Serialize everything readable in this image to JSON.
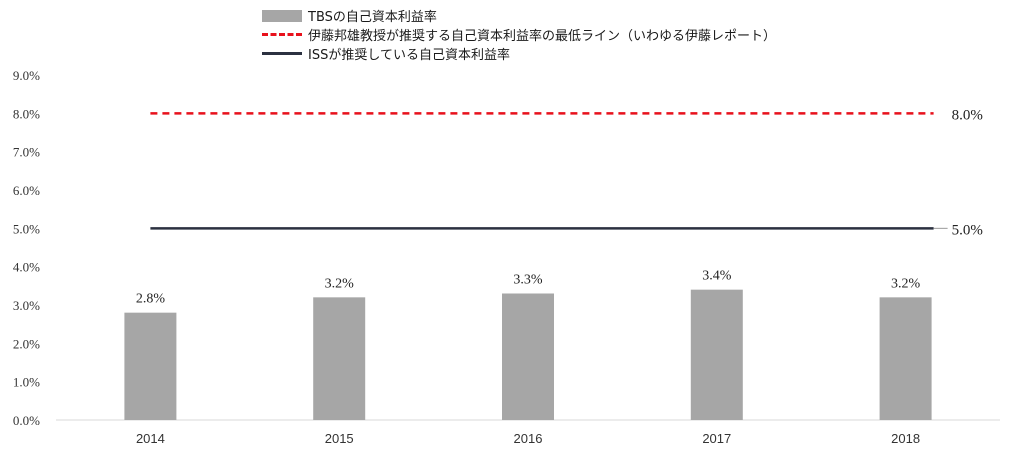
{
  "chart_data": {
    "type": "bar",
    "categories": [
      "2014",
      "2015",
      "2016",
      "2017",
      "2018"
    ],
    "series": [
      {
        "name": "TBSの自己資本利益率",
        "type": "bar",
        "values": [
          2.8,
          3.2,
          3.3,
          3.4,
          3.2
        ],
        "color": "#a6a6a6"
      },
      {
        "name": "伊藤邦雄教授が推奨する自己資本利益率の最低ライン（いわゆる伊藤レポート）",
        "type": "line",
        "style": "dashed",
        "value": 8.0,
        "color": "#e8111c"
      },
      {
        "name": "ISSが推奨している自己資本利益率",
        "type": "line",
        "style": "solid",
        "value": 5.0,
        "color": "#2b3140"
      }
    ],
    "data_labels": [
      "2.8%",
      "3.2%",
      "3.3%",
      "3.4%",
      "3.2%"
    ],
    "ref_labels": [
      "8.0%",
      "5.0%"
    ],
    "y_ticks": [
      "0.0%",
      "1.0%",
      "2.0%",
      "3.0%",
      "4.0%",
      "5.0%",
      "6.0%",
      "7.0%",
      "8.0%",
      "9.0%"
    ],
    "ylim": [
      0,
      9
    ],
    "title": "",
    "xlabel": "",
    "ylabel": "",
    "grid": false,
    "legend_position": "top"
  }
}
